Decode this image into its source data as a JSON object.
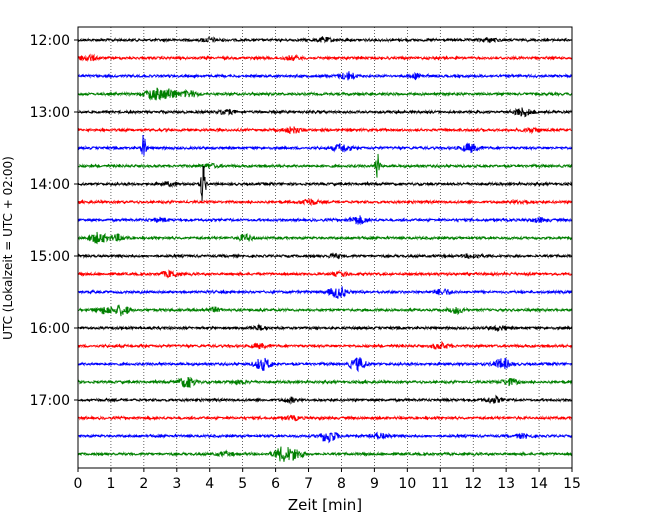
{
  "chart_data": {
    "type": "line",
    "title": "",
    "xlabel": "Zeit  [min]",
    "ylabel": "UTC (Lokalzeit = UTC + 02:00)",
    "xlim": [
      0,
      15
    ],
    "x_ticks": [
      "0",
      "1",
      "2",
      "3",
      "4",
      "5",
      "6",
      "7",
      "8",
      "9",
      "10",
      "11",
      "12",
      "13",
      "14",
      "15"
    ],
    "y_ticks": [
      "12:00",
      "13:00",
      "14:00",
      "15:00",
      "16:00",
      "17:00"
    ],
    "row_interval_minutes": 15,
    "first_row": "12:00",
    "grid": "vertical dotted lines at each minute",
    "color_cycle": [
      "#000000",
      "#ff0000",
      "#0000ff",
      "#008000"
    ],
    "rows": [
      {
        "start": "12:00",
        "events": [
          {
            "x": 4.0,
            "amp": 2
          },
          {
            "x": 7.5,
            "amp": 2
          },
          {
            "x": 12.5,
            "amp": 2
          }
        ]
      },
      {
        "start": "12:15",
        "events": [
          {
            "x": 0.3,
            "amp": 3
          },
          {
            "x": 6.5,
            "amp": 2
          }
        ]
      },
      {
        "start": "12:30",
        "events": [
          {
            "x": 8.2,
            "amp": 4
          },
          {
            "x": 10.3,
            "amp": 2
          }
        ]
      },
      {
        "start": "12:45",
        "events": [
          {
            "x": 2.3,
            "amp": 6
          },
          {
            "x": 2.8,
            "amp": 5
          },
          {
            "x": 3.4,
            "amp": 3
          }
        ]
      },
      {
        "start": "13:00",
        "events": [
          {
            "x": 13.5,
            "amp": 4
          },
          {
            "x": 4.5,
            "amp": 2
          }
        ]
      },
      {
        "start": "13:15",
        "events": [
          {
            "x": 6.5,
            "amp": 3
          },
          {
            "x": 13.8,
            "amp": 2
          }
        ]
      },
      {
        "start": "13:30",
        "events": [
          {
            "x": 2.0,
            "amp": 14
          },
          {
            "x": 8.0,
            "amp": 4
          },
          {
            "x": 11.9,
            "amp": 4
          }
        ]
      },
      {
        "start": "13:45",
        "events": [
          {
            "x": 9.1,
            "amp": 14
          },
          {
            "x": 4.0,
            "amp": 2
          }
        ]
      },
      {
        "start": "14:00",
        "events": [
          {
            "x": 3.8,
            "amp": 22
          },
          {
            "x": 2.8,
            "amp": 2
          }
        ]
      },
      {
        "start": "14:15",
        "events": [
          {
            "x": 7.0,
            "amp": 3
          },
          {
            "x": 13.5,
            "amp": 2
          }
        ]
      },
      {
        "start": "14:30",
        "events": [
          {
            "x": 8.5,
            "amp": 4
          },
          {
            "x": 2.5,
            "amp": 2
          },
          {
            "x": 14.0,
            "amp": 2
          }
        ]
      },
      {
        "start": "14:45",
        "events": [
          {
            "x": 0.6,
            "amp": 5
          },
          {
            "x": 1.2,
            "amp": 3
          },
          {
            "x": 5.1,
            "amp": 3
          }
        ]
      },
      {
        "start": "15:00",
        "events": [
          {
            "x": 7.8,
            "amp": 2
          },
          {
            "x": 12.0,
            "amp": 2
          }
        ]
      },
      {
        "start": "15:15",
        "events": [
          {
            "x": 2.8,
            "amp": 3
          },
          {
            "x": 8.0,
            "amp": 2
          }
        ]
      },
      {
        "start": "15:30",
        "events": [
          {
            "x": 7.9,
            "amp": 6
          },
          {
            "x": 11.1,
            "amp": 3
          }
        ]
      },
      {
        "start": "15:45",
        "events": [
          {
            "x": 1.3,
            "amp": 5
          },
          {
            "x": 0.8,
            "amp": 3
          },
          {
            "x": 11.5,
            "amp": 3
          },
          {
            "x": 4.1,
            "amp": 2
          }
        ]
      },
      {
        "start": "16:00",
        "events": [
          {
            "x": 12.8,
            "amp": 2
          },
          {
            "x": 5.5,
            "amp": 2
          }
        ]
      },
      {
        "start": "16:15",
        "events": [
          {
            "x": 11.0,
            "amp": 3
          },
          {
            "x": 5.5,
            "amp": 2
          }
        ]
      },
      {
        "start": "16:30",
        "events": [
          {
            "x": 5.6,
            "amp": 6
          },
          {
            "x": 8.5,
            "amp": 6
          },
          {
            "x": 12.9,
            "amp": 5
          }
        ]
      },
      {
        "start": "16:45",
        "events": [
          {
            "x": 3.3,
            "amp": 5
          },
          {
            "x": 13.1,
            "amp": 3
          },
          {
            "x": 4.9,
            "amp": 2
          }
        ]
      },
      {
        "start": "17:00",
        "events": [
          {
            "x": 12.6,
            "amp": 3
          },
          {
            "x": 6.5,
            "amp": 2
          }
        ]
      },
      {
        "start": "17:15",
        "events": [
          {
            "x": 6.5,
            "amp": 2
          }
        ]
      },
      {
        "start": "17:30",
        "events": [
          {
            "x": 7.6,
            "amp": 6
          },
          {
            "x": 9.2,
            "amp": 3
          },
          {
            "x": 13.5,
            "amp": 2
          }
        ]
      },
      {
        "start": "17:45",
        "events": [
          {
            "x": 6.2,
            "amp": 7
          },
          {
            "x": 6.6,
            "amp": 5
          },
          {
            "x": 4.5,
            "amp": 2
          }
        ]
      }
    ]
  }
}
